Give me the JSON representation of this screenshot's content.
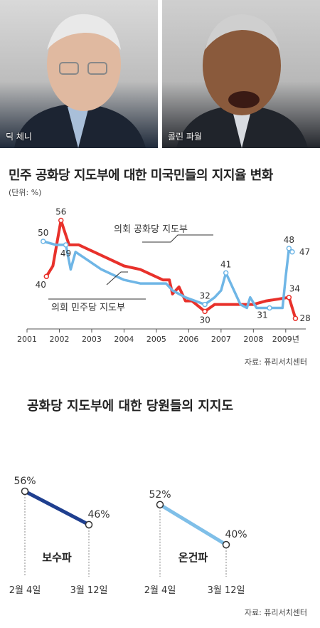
{
  "photos": [
    {
      "caption": "딕 체니"
    },
    {
      "caption": "콜린 파월"
    }
  ],
  "chart_data": [
    {
      "type": "line",
      "title": "민주 공화당 지도부에 대한 미국민들의 지지율 변화",
      "unit": "(단위: %)",
      "source": "자료: 퓨리서치센터",
      "x_ticks": [
        "2001",
        "2002",
        "2003",
        "2004",
        "2005",
        "2006",
        "2007",
        "2008",
        "2009년"
      ],
      "xlim": [
        2001,
        2009.4
      ],
      "ylim": [
        25,
        62
      ],
      "colors": {
        "republican": "#e8312b",
        "democrat": "#6fb6e6"
      },
      "series": [
        {
          "name": "의회 공화당 지도부",
          "color": "#e8312b",
          "points": [
            [
              2001.6,
              40
            ],
            [
              2001.8,
              43
            ],
            [
              2002.05,
              56
            ],
            [
              2002.3,
              49
            ],
            [
              2002.6,
              49
            ],
            [
              2003.3,
              46
            ],
            [
              2004.0,
              43
            ],
            [
              2004.5,
              42
            ],
            [
              2005.2,
              39
            ],
            [
              2005.4,
              39
            ],
            [
              2005.5,
              35
            ],
            [
              2005.7,
              37
            ],
            [
              2005.9,
              33
            ],
            [
              2006.1,
              33
            ],
            [
              2006.5,
              30
            ],
            [
              2006.8,
              32
            ],
            [
              2007.2,
              32
            ],
            [
              2008.0,
              32
            ],
            [
              2008.4,
              33
            ],
            [
              2009.1,
              34
            ],
            [
              2009.3,
              28
            ]
          ],
          "labels": [
            {
              "x": 2001.6,
              "y": 40,
              "text": "40"
            },
            {
              "x": 2002.05,
              "y": 56,
              "text": "56"
            },
            {
              "x": 2006.5,
              "y": 30,
              "text": "30"
            },
            {
              "x": 2009.1,
              "y": 34,
              "text": "34"
            },
            {
              "x": 2009.3,
              "y": 28,
              "text": "28"
            }
          ]
        },
        {
          "name": "의회 민주당 지도부",
          "color": "#6fb6e6",
          "points": [
            [
              2001.5,
              50
            ],
            [
              2001.9,
              49
            ],
            [
              2002.2,
              49
            ],
            [
              2002.35,
              42
            ],
            [
              2002.5,
              47
            ],
            [
              2003.3,
              42
            ],
            [
              2004.0,
              39
            ],
            [
              2004.5,
              38
            ],
            [
              2005.3,
              38
            ],
            [
              2005.5,
              36
            ],
            [
              2005.9,
              34
            ],
            [
              2006.2,
              33
            ],
            [
              2006.5,
              32
            ],
            [
              2006.8,
              34
            ],
            [
              2007.0,
              36
            ],
            [
              2007.15,
              41
            ],
            [
              2007.4,
              36
            ],
            [
              2007.6,
              32
            ],
            [
              2007.8,
              31
            ],
            [
              2007.9,
              34
            ],
            [
              2008.1,
              31
            ],
            [
              2008.5,
              31
            ],
            [
              2008.9,
              31
            ],
            [
              2009.0,
              40
            ],
            [
              2009.1,
              48
            ],
            [
              2009.2,
              47
            ]
          ],
          "labels": [
            {
              "x": 2001.5,
              "y": 50,
              "text": "50"
            },
            {
              "x": 2002.2,
              "y": 49,
              "text": "49"
            },
            {
              "x": 2006.5,
              "y": 32,
              "text": "32"
            },
            {
              "x": 2007.15,
              "y": 41,
              "text": "41"
            },
            {
              "x": 2008.5,
              "y": 31,
              "text": "31"
            },
            {
              "x": 2009.1,
              "y": 48,
              "text": "48"
            },
            {
              "x": 2009.2,
              "y": 47,
              "text": "47"
            }
          ]
        }
      ]
    },
    {
      "type": "line",
      "title": "공화당 지도부에 대한 당원들의 지지도",
      "source": "자료: 퓨리서치센터",
      "categories": [
        "2월 4일",
        "3월 12일"
      ],
      "series": [
        {
          "name": "보수파",
          "color": "#1f3f8f",
          "values": [
            56,
            46
          ],
          "labels": [
            "56%",
            "46%"
          ]
        },
        {
          "name": "온건파",
          "color": "#7fbfe8",
          "values": [
            52,
            40
          ],
          "labels": [
            "52%",
            "40%"
          ]
        }
      ]
    }
  ]
}
